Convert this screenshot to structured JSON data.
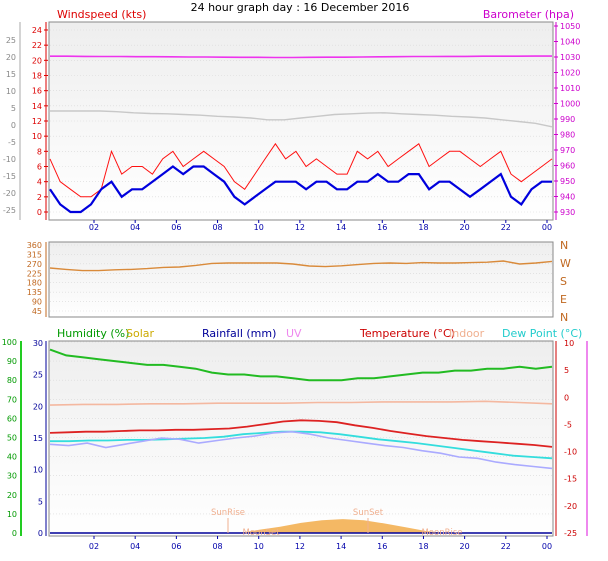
{
  "title": "24 hour graph day : 16 December 2016",
  "x_ticks": [
    "02",
    "04",
    "06",
    "08",
    "10",
    "12",
    "14",
    "16",
    "18",
    "20",
    "22",
    "00"
  ],
  "colors": {
    "plot_bg_top": "#f2f2f2",
    "plot_bg_bottom": "#ffffff",
    "wind_gust": "#ff1111",
    "wind_avg": "#0000dd",
    "barometer": "#ee33ee",
    "indoor": "#c8c8c8",
    "direction": "#d98a3a",
    "humidity": "#22bb22",
    "temperature": "#dd2222",
    "indoor_temp": "#f4b8a0",
    "dew_point": "#33dddd",
    "outdoor_lilac": "#aaaaff",
    "solar": "#f0a030",
    "uv": "#ee99ee",
    "rain": "#000099"
  },
  "chart_data": [
    {
      "type": "line",
      "panel": "wind",
      "left_label": "Windspeed (kts)",
      "right_label": "Barometer (hpa)",
      "x_ticks": [
        "02",
        "04",
        "06",
        "08",
        "10",
        "12",
        "14",
        "16",
        "18",
        "20",
        "22",
        "00"
      ],
      "y_left_ticks": [
        "24",
        "22",
        "20",
        "18",
        "16",
        "14",
        "12",
        "10",
        "8",
        "6",
        "4",
        "2",
        "0"
      ],
      "y_left_ylim": [
        0,
        25
      ],
      "y_right_ticks": [
        "1050",
        "1040",
        "1030",
        "1020",
        "1010",
        "1000",
        "990",
        "980",
        "970",
        "960",
        "950",
        "940",
        "930"
      ],
      "y_right_ylim": [
        930,
        1052
      ],
      "y_outer_ticks": [
        "25",
        "20",
        "15",
        "10",
        "5",
        "0",
        "-5",
        "-10",
        "-15",
        "-20",
        "-25"
      ],
      "series": [
        {
          "role": "gust",
          "values": [
            7,
            4,
            3,
            2,
            2,
            3,
            8,
            5,
            6,
            6,
            5,
            7,
            8,
            6,
            7,
            8,
            7,
            6,
            4,
            3,
            5,
            7,
            9,
            7,
            8,
            6,
            7,
            6,
            5,
            5,
            8,
            7,
            8,
            6,
            7,
            8,
            9,
            6,
            7,
            8,
            8,
            7,
            6,
            7,
            8,
            5,
            4,
            5,
            6,
            7
          ]
        },
        {
          "role": "average",
          "values": [
            3,
            1,
            0,
            0,
            1,
            3,
            4,
            2,
            3,
            3,
            4,
            5,
            6,
            5,
            6,
            6,
            5,
            4,
            2,
            1,
            2,
            3,
            4,
            4,
            4,
            3,
            4,
            4,
            3,
            3,
            4,
            4,
            5,
            4,
            4,
            5,
            5,
            3,
            4,
            4,
            3,
            2,
            3,
            4,
            5,
            2,
            1,
            3,
            4,
            4
          ]
        },
        {
          "role": "barometer",
          "values": [
            1030.5,
            1030.5,
            1030.4,
            1030.3,
            1030.3,
            1030.2,
            1030.2,
            1030.1,
            1030.0,
            1030.0,
            1029.9,
            1029.8,
            1029.8,
            1029.7,
            1029.7,
            1029.8,
            1029.9,
            1029.9,
            1030.0,
            1030.1,
            1030.2,
            1030.3,
            1030.3,
            1030.4,
            1030.4,
            1030.5,
            1030.5,
            1030.5,
            1030.6,
            1030.6
          ]
        },
        {
          "role": "indoor",
          "values": [
            2,
            2,
            2,
            2,
            1.8,
            1.5,
            1.3,
            1.2,
            1,
            0.8,
            0.5,
            0.3,
            0,
            -0.5,
            -0.5,
            0,
            0.5,
            1,
            1.2,
            1.4,
            1.5,
            1.2,
            1,
            0.8,
            0.5,
            0.3,
            0,
            -0.5,
            -1,
            -1.5,
            -2.5
          ]
        }
      ]
    },
    {
      "type": "line",
      "panel": "direction",
      "y_left_ticks": [
        "360",
        "315",
        "270",
        "225",
        "180",
        "135",
        "90",
        "45"
      ],
      "y_left_ylim": [
        0,
        360
      ],
      "y_right_ticks": [
        "N",
        "W",
        "S",
        "E",
        "N"
      ],
      "series": [
        {
          "role": "direction",
          "values": [
            245,
            238,
            232,
            232,
            236,
            238,
            242,
            248,
            250,
            258,
            268,
            270,
            270,
            270,
            270,
            265,
            255,
            252,
            256,
            262,
            268,
            270,
            268,
            272,
            270,
            270,
            272,
            274,
            280,
            265,
            270,
            278
          ]
        }
      ]
    },
    {
      "type": "line",
      "panel": "climate",
      "labels": {
        "humidity": "Humidity (%)",
        "solar": "Solar",
        "rain": "Rainfall (mm)",
        "uv": "UV",
        "temperature": "Temperature (°C)",
        "indoor": "Indoor",
        "dew": "Dew Point (°C)",
        "sunrise": "SunRise",
        "sunset": "SunSet",
        "moonset": "MoonSet",
        "moonrise": "MoonRise"
      },
      "y_left_ticks": [
        "100",
        "90",
        "80",
        "70",
        "60",
        "50",
        "40",
        "30",
        "20",
        "10",
        "0"
      ],
      "y_left_ylim": [
        0,
        100
      ],
      "y_mid_ticks": [
        "30",
        "25",
        "20",
        "15",
        "10",
        "5",
        "0"
      ],
      "y_mid_ylim": [
        0,
        30
      ],
      "y_right_ticks": [
        "10",
        "5",
        "0",
        "-5",
        "-10",
        "-15",
        "-20",
        "-25"
      ],
      "y_right_ylim": [
        -25,
        10
      ],
      "series": [
        {
          "role": "humidity",
          "values": [
            96,
            93,
            92,
            91,
            90,
            89,
            88,
            88,
            87,
            86,
            84,
            83,
            83,
            82,
            82,
            81,
            80,
            80,
            80,
            81,
            81,
            82,
            83,
            84,
            84,
            85,
            85,
            86,
            86,
            87,
            86,
            87
          ]
        },
        {
          "role": "temperature",
          "values": [
            15.8,
            15.9,
            16.0,
            16.0,
            16.1,
            16.2,
            16.2,
            16.3,
            16.3,
            16.4,
            16.5,
            16.8,
            17.2,
            17.6,
            17.8,
            17.7,
            17.5,
            17.0,
            16.6,
            16.1,
            15.7,
            15.3,
            15.0,
            14.7,
            14.5,
            14.3,
            14.1,
            13.9,
            13.6
          ]
        },
        {
          "role": "dew_point",
          "values": [
            14.5,
            14.5,
            14.6,
            14.6,
            14.7,
            14.7,
            14.8,
            14.9,
            15.0,
            15.2,
            15.6,
            15.8,
            16.0,
            16.0,
            15.9,
            15.6,
            15.2,
            14.8,
            14.5,
            14.2,
            13.8,
            13.4,
            13.0,
            12.6,
            12.2,
            12.0,
            11.8
          ]
        },
        {
          "role": "indoor_temp",
          "values": [
            20.2,
            20.3,
            20.3,
            20.4,
            20.4,
            20.5,
            20.5,
            20.5,
            20.6,
            20.6,
            20.7,
            20.7,
            20.7,
            20.8,
            20.6,
            20.4
          ]
        },
        {
          "role": "lilac",
          "values": [
            14.0,
            13.8,
            14.2,
            13.5,
            14.0,
            14.5,
            15.0,
            14.8,
            14.2,
            14.6,
            15.0,
            15.3,
            15.8,
            16.0,
            15.6,
            15.0,
            14.6,
            14.2,
            13.8,
            13.5,
            13.0,
            12.6,
            12.0,
            11.8,
            11.2,
            10.8,
            10.5,
            10.2
          ]
        },
        {
          "role": "solar",
          "values": [
            0,
            0,
            0,
            0,
            0,
            0,
            0,
            0,
            0,
            0,
            0.5,
            1.0,
            1.6,
            2.0,
            2.2,
            2.0,
            1.5,
            0.9,
            0.3,
            0,
            0,
            0,
            0,
            0,
            0
          ]
        }
      ]
    }
  ]
}
